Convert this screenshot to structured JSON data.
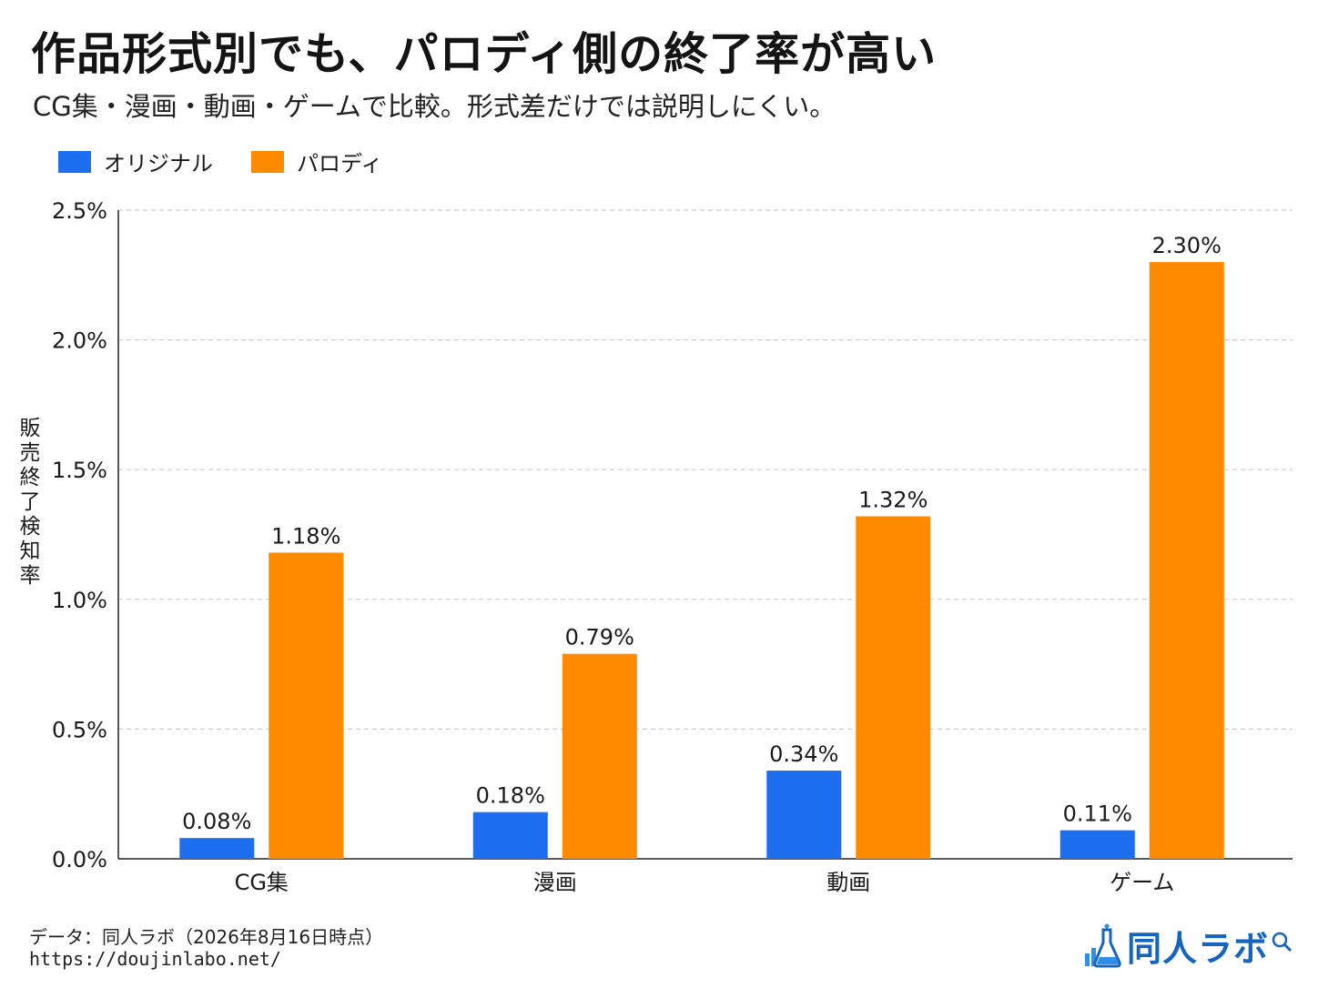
{
  "title": "作品形式別でも、パロディ側の終了率が高い",
  "subtitle": "CG集・漫画・動画・ゲームで比較。形式差だけでは説明しにくい。",
  "legend": {
    "original": "オリジナル",
    "parody": "パロディ"
  },
  "colors": {
    "original": "#1e6ff0",
    "parody": "#ff8a00",
    "grid": "#cccccc",
    "axis": "#222222"
  },
  "chart_data": {
    "type": "bar",
    "categories": [
      "CG集",
      "漫画",
      "動画",
      "ゲーム"
    ],
    "series": [
      {
        "name": "オリジナル",
        "values": [
          0.08,
          0.18,
          0.34,
          0.11
        ],
        "labels": [
          "0.08%",
          "0.18%",
          "0.34%",
          "0.11%"
        ]
      },
      {
        "name": "パロディ",
        "values": [
          1.18,
          0.79,
          1.32,
          2.3
        ],
        "labels": [
          "1.18%",
          "0.79%",
          "1.32%",
          "2.30%"
        ]
      }
    ],
    "ylabel": "販売終了検知率",
    "ylim": [
      0,
      2.5
    ],
    "yticks": [
      0,
      0.5,
      1.0,
      1.5,
      2.0,
      2.5
    ],
    "ytick_labels": [
      "0.0%",
      "0.5%",
      "1.0%",
      "1.5%",
      "2.0%",
      "2.5%"
    ],
    "grid": true,
    "legend_position": "top-left"
  },
  "footer": {
    "source": "データ：同人ラボ（2026年8月16日時点）",
    "url": "https://doujinlabo.net/"
  },
  "logo": {
    "text": "同人ラボ",
    "icon": "flask-chart-icon"
  }
}
